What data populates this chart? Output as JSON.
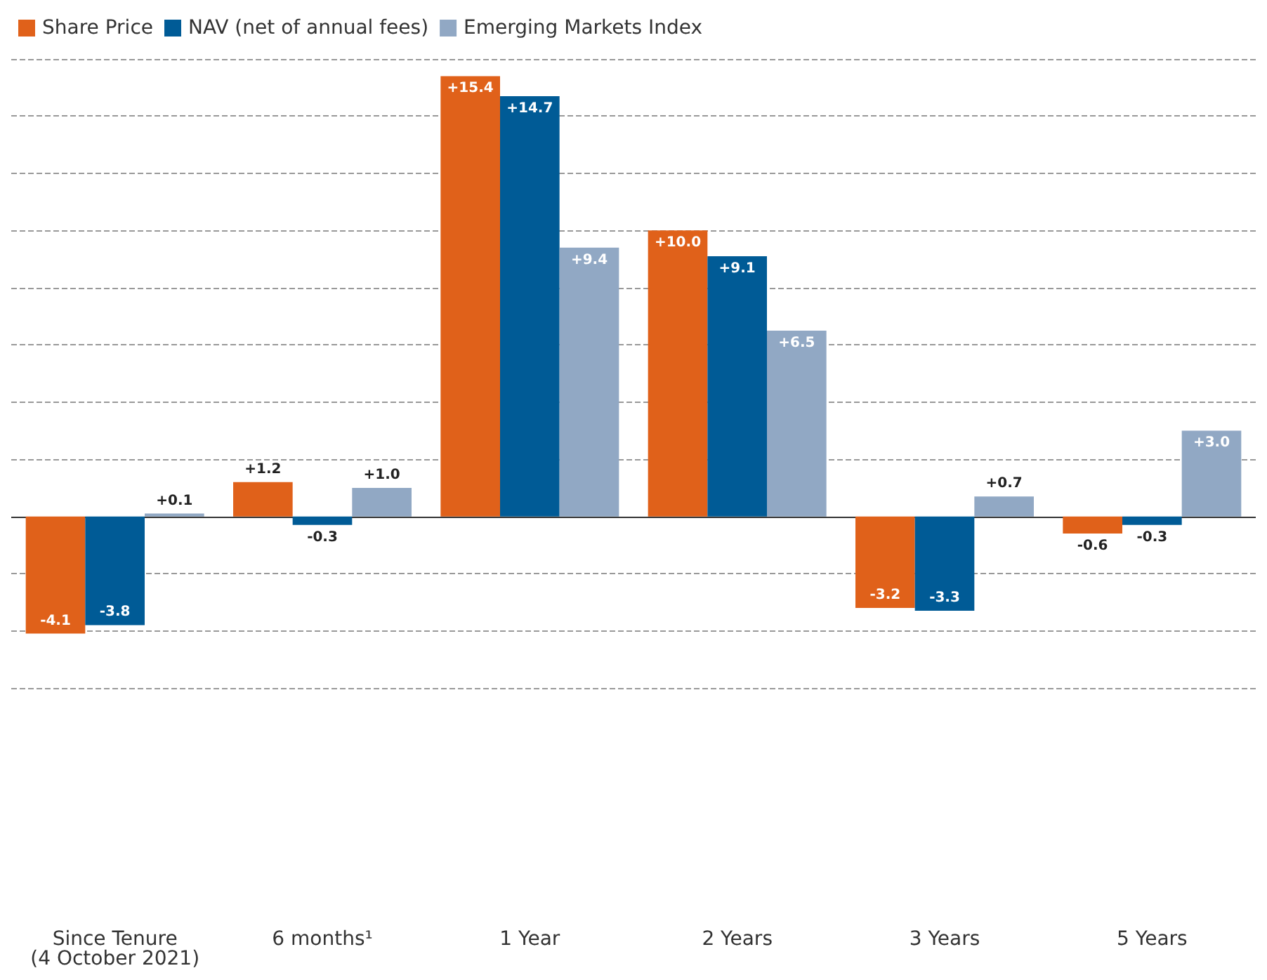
{
  "chart_data": {
    "type": "bar",
    "categories": [
      "Since Tenure\n(4 October 2021)",
      "6 months¹",
      "1 Year",
      "2 Years",
      "3 Years",
      "5 Years"
    ],
    "series": [
      {
        "name": "Share Price",
        "color": "#e0611a",
        "values": [
          -4.1,
          1.2,
          15.4,
          10.0,
          -3.2,
          -0.6
        ],
        "value_labels": [
          "-4.1",
          "+1.2",
          "+15.4",
          "+10.0",
          "-3.2",
          "-0.6"
        ]
      },
      {
        "name": "NAV (net of annual fees)",
        "color": "#005b96",
        "values": [
          -3.8,
          -0.3,
          14.7,
          9.1,
          -3.3,
          -0.3
        ],
        "value_labels": [
          "-3.8",
          "-0.3",
          "+14.7",
          "+9.1",
          "-3.3",
          "-0.3"
        ]
      },
      {
        "name": "Emerging Markets Index",
        "color": "#91a8c4",
        "values": [
          0.1,
          1.0,
          9.4,
          6.5,
          0.7,
          3.0
        ],
        "value_labels": [
          "+0.1",
          "+1.0",
          "+9.4",
          "+6.5",
          "+0.7",
          "+3.0"
        ]
      }
    ],
    "ylim": [
      -6,
      16
    ],
    "yticks": [
      {
        "value": -6,
        "label": null
      },
      {
        "value": -4,
        "label": null
      },
      {
        "value": -2,
        "label": null
      },
      {
        "value": 0,
        "label": null
      },
      {
        "value": 2,
        "label": null
      },
      {
        "value": 4,
        "label": null
      },
      {
        "value": 6,
        "label": null
      },
      {
        "value": 8,
        "label": null
      },
      {
        "value": 10,
        "label": null
      },
      {
        "value": 12,
        "label": null
      },
      {
        "value": 14,
        "label": null
      },
      {
        "value": 16,
        "label": null
      }
    ],
    "tick_labels": "x",
    "grid": "y",
    "legend": "top left"
  }
}
